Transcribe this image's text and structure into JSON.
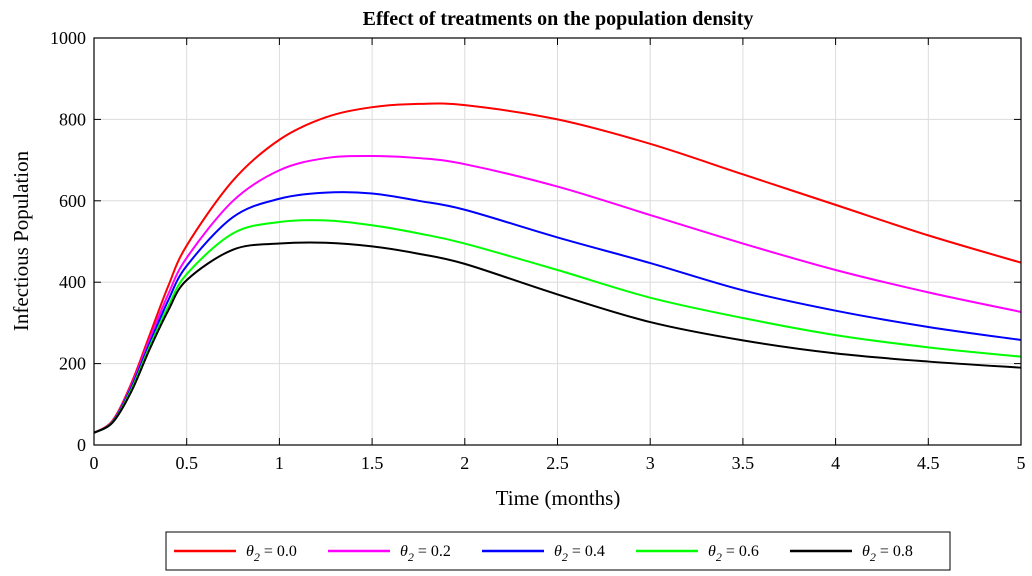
{
  "chart_data": {
    "type": "line",
    "title": "Effect of treatments on the population density",
    "xlabel": "Time (months)",
    "ylabel": "Infectious Population",
    "xlim": [
      0,
      5
    ],
    "ylim": [
      0,
      1000
    ],
    "xticks": [
      0,
      0.5,
      1,
      1.5,
      2,
      2.5,
      3,
      3.5,
      4,
      4.5,
      5
    ],
    "yticks": [
      0,
      200,
      400,
      600,
      800,
      1000
    ],
    "xtick_labels": [
      "0",
      "0.5",
      "1",
      "1.5",
      "2",
      "2.5",
      "3",
      "3.5",
      "4",
      "4.5",
      "5"
    ],
    "ytick_labels": [
      "0",
      "200",
      "400",
      "600",
      "800",
      "1000"
    ],
    "grid": true,
    "legend_position": "bottom-outside",
    "x": [
      0,
      0.1,
      0.2,
      0.3,
      0.4,
      0.5,
      0.75,
      1,
      1.25,
      1.5,
      1.75,
      2,
      2.5,
      3,
      3.5,
      4,
      4.5,
      5
    ],
    "series": [
      {
        "name": "θ2 = 0.0",
        "legend_symbol": "θ",
        "legend_sub": "2",
        "legend_value": " = 0.0",
        "color": "#ff0000",
        "values": [
          30,
          60,
          150,
          270,
          390,
          490,
          650,
          750,
          805,
          830,
          838,
          835,
          800,
          740,
          665,
          590,
          515,
          448
        ]
      },
      {
        "name": "θ2 = 0.2",
        "legend_symbol": "θ",
        "legend_sub": "2",
        "legend_value": " = 0.2",
        "color": "#ff00ff",
        "values": [
          30,
          58,
          145,
          260,
          370,
          460,
          600,
          675,
          705,
          710,
          705,
          690,
          635,
          565,
          495,
          430,
          375,
          327
        ]
      },
      {
        "name": "θ2 = 0.4",
        "legend_symbol": "θ",
        "legend_sub": "2",
        "legend_value": " = 0.4",
        "color": "#0000ff",
        "values": [
          30,
          57,
          140,
          250,
          355,
          440,
          560,
          605,
          620,
          618,
          600,
          578,
          510,
          447,
          380,
          330,
          290,
          258
        ]
      },
      {
        "name": "θ2 = 0.6",
        "legend_symbol": "θ",
        "legend_sub": "2",
        "legend_value": " = 0.6",
        "color": "#00ff00",
        "values": [
          30,
          56,
          135,
          242,
          340,
          420,
          520,
          548,
          552,
          540,
          520,
          495,
          430,
          362,
          312,
          270,
          240,
          217
        ]
      },
      {
        "name": "θ2 = 0.8",
        "legend_symbol": "θ",
        "legend_sub": "2",
        "legend_value": " = 0.8",
        "color": "#000000",
        "values": [
          30,
          55,
          130,
          235,
          330,
          405,
          480,
          495,
          497,
          488,
          470,
          445,
          370,
          302,
          257,
          225,
          205,
          190
        ]
      }
    ]
  }
}
